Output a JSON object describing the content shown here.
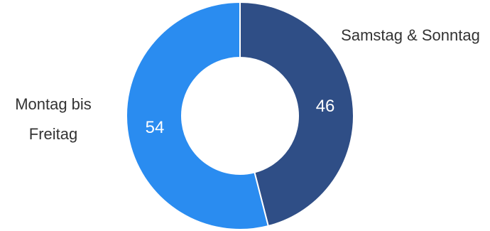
{
  "chart_data": {
    "type": "pie",
    "variant": "donut",
    "title": "",
    "slices": [
      {
        "label": "Samstag & Sonntag",
        "label_lines": [
          "Samstag & Sonntag"
        ],
        "value": 46,
        "value_label": "46",
        "color": "#2f4e86"
      },
      {
        "label": "Montag bis Freitag",
        "label_lines": [
          "Montag bis",
          "Freitag"
        ],
        "value": 54,
        "value_label": "54",
        "color": "#2a8cf0"
      }
    ],
    "legend": false
  }
}
